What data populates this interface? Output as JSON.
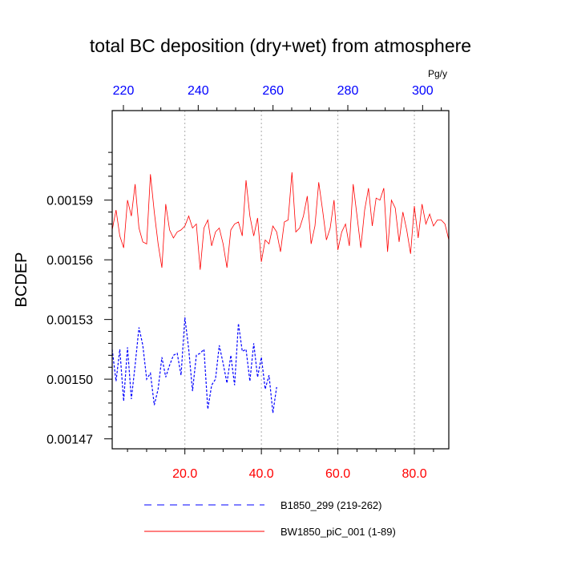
{
  "chart_data": {
    "type": "line",
    "title": "total BC deposition (dry+wet) from atmosphere",
    "ylabel": "BCDEP",
    "top_axis_unit": "Pg/y",
    "ylim": [
      0.001465,
      0.001635
    ],
    "y_ticks": [
      0.00147,
      0.0015,
      0.00153,
      0.00156,
      0.00159
    ],
    "y_tick_labels": [
      "0.00147",
      "0.00150",
      "0.00153",
      "0.00156",
      "0.00159"
    ],
    "xlim": [
      1,
      89
    ],
    "x_ticks": [
      20,
      40,
      60,
      80
    ],
    "x_tick_labels": [
      "20.0",
      "40.0",
      "60.0",
      "80.0"
    ],
    "x_tick_color": "#ff0000",
    "top_xlim": [
      217,
      307
    ],
    "top_ticks": [
      220,
      240,
      260,
      280,
      300
    ],
    "top_tick_labels": [
      "220",
      "240",
      "260",
      "280",
      "300"
    ],
    "top_tick_color": "#0000ff",
    "grid": "dotted vertical lines at bottom-axis ticks",
    "legend_position": "bottom",
    "series": [
      {
        "name": "B1850_299 (219-262)",
        "color": "#0000ff",
        "dash": "dashed",
        "x": [
          1,
          2,
          3,
          4,
          5,
          6,
          7,
          8,
          9,
          10,
          11,
          12,
          13,
          14,
          15,
          16,
          17,
          18,
          19,
          20,
          21,
          22,
          23,
          24,
          25,
          26,
          27,
          28,
          29,
          30,
          31,
          32,
          33,
          34,
          35,
          36,
          37,
          38,
          39,
          40,
          41,
          42,
          43,
          44
        ],
        "values": [
          0.001515,
          0.001499,
          0.001515,
          0.001489,
          0.001516,
          0.00149,
          0.001507,
          0.001526,
          0.001517,
          0.0015,
          0.001503,
          0.001487,
          0.001495,
          0.001511,
          0.001501,
          0.001507,
          0.001512,
          0.001513,
          0.001502,
          0.001531,
          0.001515,
          0.001494,
          0.001512,
          0.001513,
          0.001515,
          0.001485,
          0.001497,
          0.0015,
          0.001517,
          0.001508,
          0.001498,
          0.001512,
          0.001497,
          0.001528,
          0.001514,
          0.001515,
          0.001499,
          0.001518,
          0.001501,
          0.001511,
          0.001495,
          0.001502,
          0.001483,
          0.001496
        ]
      },
      {
        "name": "BW1850_piC_001 (1-89)",
        "color": "#ff0000",
        "dash": "solid",
        "x": [
          1,
          2,
          3,
          4,
          5,
          6,
          7,
          8,
          9,
          10,
          11,
          12,
          13,
          14,
          15,
          16,
          17,
          18,
          19,
          20,
          21,
          22,
          23,
          24,
          25,
          26,
          27,
          28,
          29,
          30,
          31,
          32,
          33,
          34,
          35,
          36,
          37,
          38,
          39,
          40,
          41,
          42,
          43,
          44,
          45,
          46,
          47,
          48,
          49,
          50,
          51,
          52,
          53,
          54,
          55,
          56,
          57,
          58,
          59,
          60,
          61,
          62,
          63,
          64,
          65,
          66,
          67,
          68,
          69,
          70,
          71,
          72,
          73,
          74,
          75,
          76,
          77,
          78,
          79,
          80,
          81,
          82,
          83,
          84,
          85,
          86,
          87,
          88,
          89
        ],
        "values": [
          0.001575,
          0.001585,
          0.001572,
          0.001566,
          0.00159,
          0.001582,
          0.001598,
          0.001576,
          0.001569,
          0.001568,
          0.001603,
          0.001584,
          0.001568,
          0.001556,
          0.001588,
          0.001575,
          0.001571,
          0.001574,
          0.001575,
          0.001577,
          0.001582,
          0.001576,
          0.001578,
          0.001555,
          0.001576,
          0.00158,
          0.001567,
          0.001574,
          0.001576,
          0.001568,
          0.001556,
          0.001575,
          0.001578,
          0.001579,
          0.001572,
          0.0016,
          0.001582,
          0.001572,
          0.001581,
          0.001559,
          0.00157,
          0.001568,
          0.001577,
          0.001574,
          0.001564,
          0.001579,
          0.00158,
          0.001604,
          0.001574,
          0.001576,
          0.001582,
          0.001592,
          0.001568,
          0.001577,
          0.001599,
          0.001585,
          0.00157,
          0.001576,
          0.00159,
          0.001565,
          0.001574,
          0.001578,
          0.001567,
          0.001598,
          0.001582,
          0.001566,
          0.001585,
          0.001596,
          0.001577,
          0.001591,
          0.00159,
          0.001596,
          0.001564,
          0.00159,
          0.001586,
          0.001569,
          0.001584,
          0.001575,
          0.001563,
          0.001587,
          0.001571,
          0.001588,
          0.001578,
          0.001583,
          0.001577,
          0.00158,
          0.00158,
          0.001578,
          0.00157
        ]
      }
    ]
  }
}
